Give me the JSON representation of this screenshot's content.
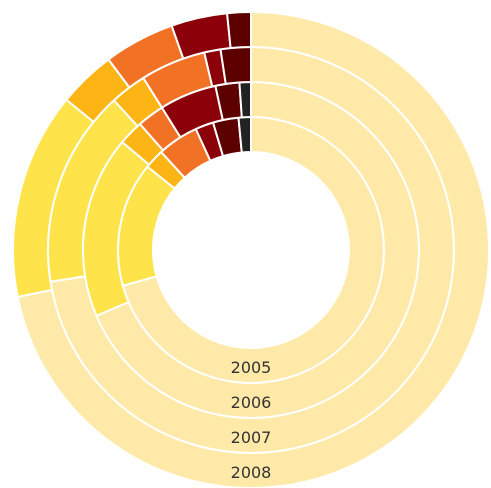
{
  "chart_data": {
    "type": "multi-donut",
    "colors": [
      "#ffe9a8",
      "#fee44a",
      "#fdb516",
      "#f17125",
      "#8b0009",
      "#5c0000",
      "#222222"
    ],
    "series": [
      {
        "name": "2005",
        "values": [
          70.6,
          15.1,
          2.4,
          5.0,
          2.2,
          3.1,
          1.5
        ]
      },
      {
        "name": "2006",
        "values": [
          68.6,
          17.5,
          2.4,
          2.6,
          5.5,
          2.3,
          1.1
        ]
      },
      {
        "name": "2007",
        "values": [
          72.5,
          15.7,
          2.9,
          5.2,
          1.3,
          2.4
        ]
      },
      {
        "name": "2008",
        "values": [
          71.7,
          14.0,
          3.9,
          4.8,
          3.8,
          1.6
        ]
      }
    ]
  }
}
